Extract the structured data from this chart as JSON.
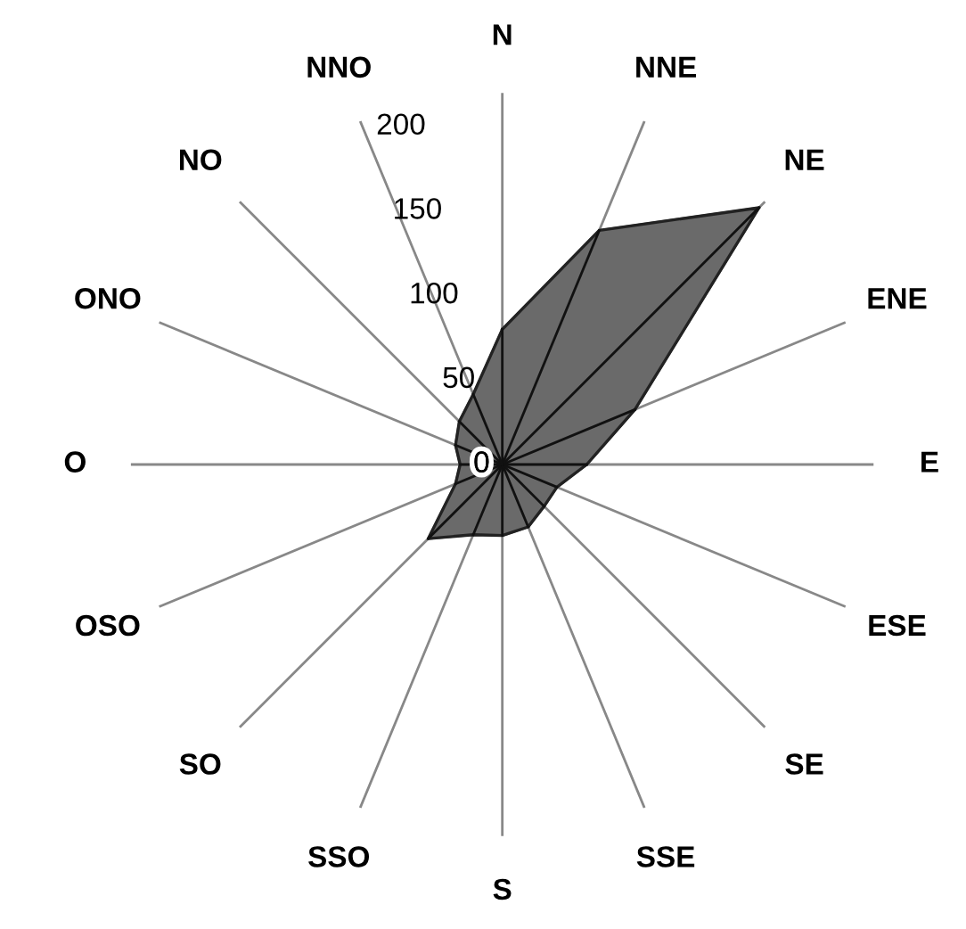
{
  "chart_data": {
    "type": "radar",
    "categories": [
      "N",
      "NNE",
      "NE",
      "ENE",
      "E",
      "ESE",
      "SE",
      "SSE",
      "S",
      "SSO",
      "SO",
      "OSO",
      "O",
      "ONO",
      "NO",
      "NNO"
    ],
    "series": [
      {
        "color": "#5a5a5a",
        "values": [
          80,
          150,
          215,
          85,
          50,
          35,
          35,
          40,
          42,
          45,
          62,
          30,
          25,
          30,
          36,
          45
        ]
      }
    ],
    "ylim": [
      0,
      220
    ],
    "yticks": [
      0,
      50,
      100,
      150,
      200
    ],
    "grid": "x"
  }
}
